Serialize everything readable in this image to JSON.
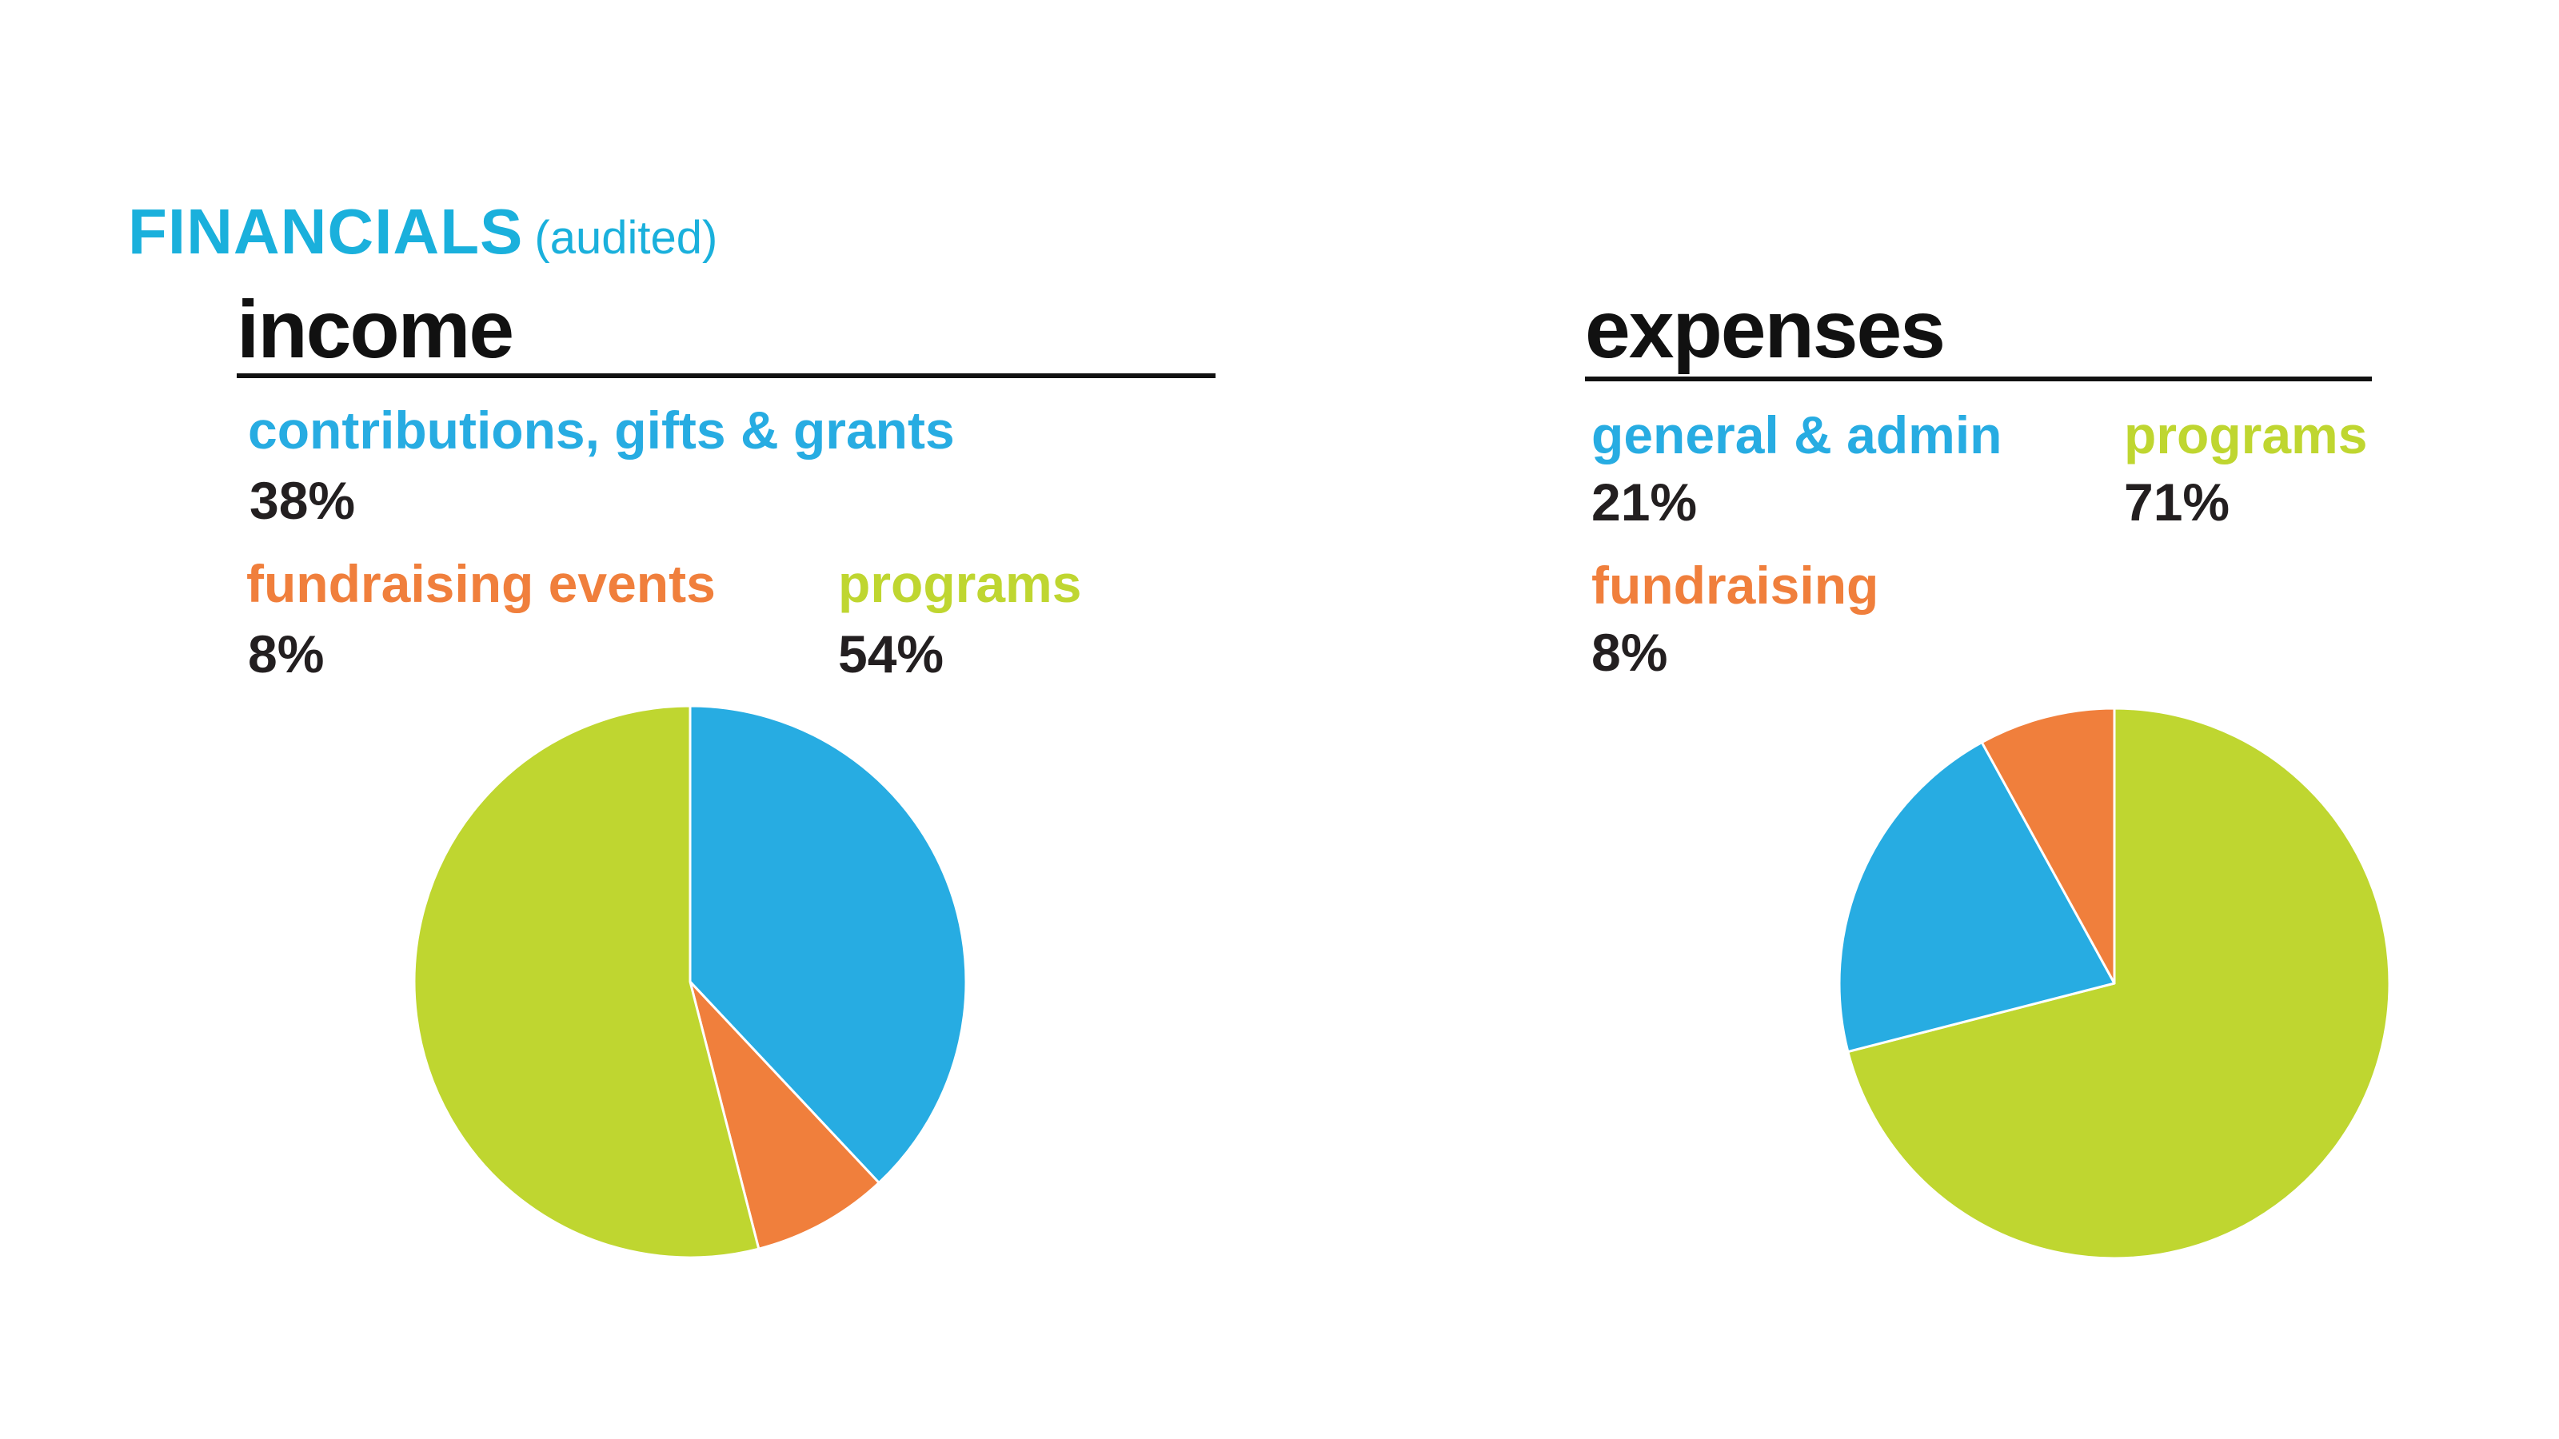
{
  "heading": {
    "title": "FINANCIALS",
    "subtitle": "(audited)",
    "color": "#1ab0dc"
  },
  "colors": {
    "blue": "#27ace2",
    "orange": "#f07f3c",
    "green": "#bfd630",
    "text": "#231f20"
  },
  "chart_data": [
    {
      "type": "pie",
      "title": "income",
      "start_angle": "12 o'clock",
      "direction": "clockwise",
      "slices": [
        {
          "label": "contributions, gifts & grants",
          "value": 38,
          "display": "38%",
          "color": "#27ace2"
        },
        {
          "label": "fundraising events",
          "value": 8,
          "display": "8%",
          "color": "#f07f3c"
        },
        {
          "label": "programs",
          "value": 54,
          "display": "54%",
          "color": "#bfd630"
        }
      ]
    },
    {
      "type": "pie",
      "title": "expenses",
      "start_angle": "12 o'clock",
      "direction": "clockwise",
      "slices": [
        {
          "label": "programs",
          "value": 71,
          "display": "71%",
          "color": "#bfd630"
        },
        {
          "label": "general & admin",
          "value": 21,
          "display": "21%",
          "color": "#27ace2"
        },
        {
          "label": "fundraising",
          "value": 8,
          "display": "8%",
          "color": "#f07f3c"
        }
      ]
    }
  ]
}
